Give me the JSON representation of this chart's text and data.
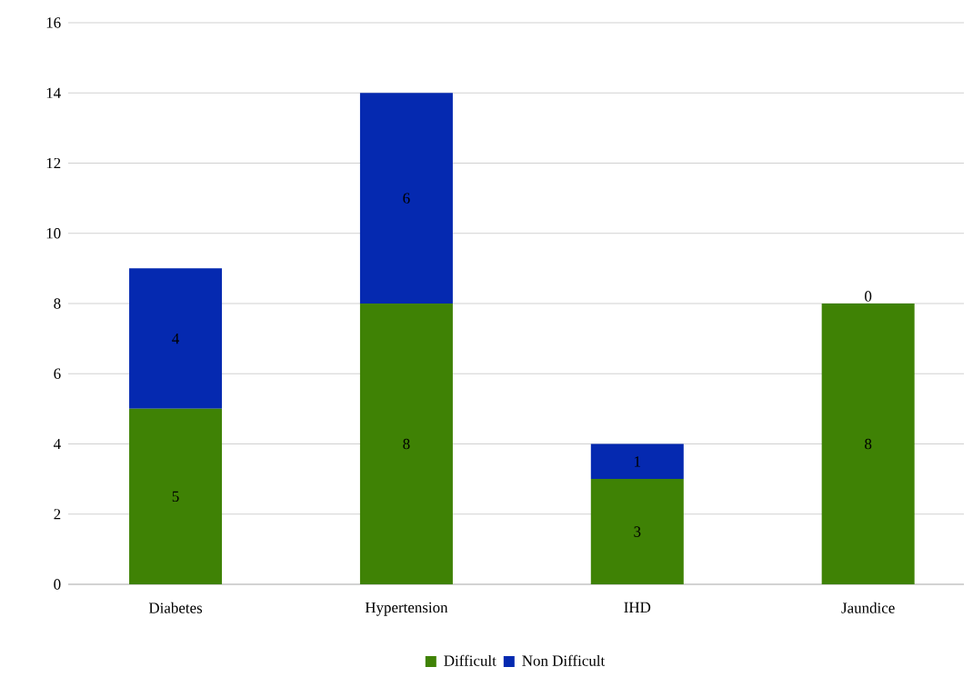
{
  "chart_data": {
    "type": "bar",
    "stacked": true,
    "categories": [
      "Diabetes",
      "Hypertension",
      "IHD",
      "Jaundice"
    ],
    "series": [
      {
        "name": "Difficult",
        "color": "#3f8205",
        "values": [
          5,
          8,
          3,
          8
        ]
      },
      {
        "name": "Non Difficult",
        "color": "#0529b0",
        "values": [
          4,
          6,
          1,
          0
        ]
      }
    ],
    "ylim": [
      0,
      16
    ],
    "yticks": [
      0,
      2,
      4,
      6,
      8,
      10,
      12,
      14,
      16
    ],
    "grid": "y",
    "legend": "bottom",
    "data_labels": true
  }
}
